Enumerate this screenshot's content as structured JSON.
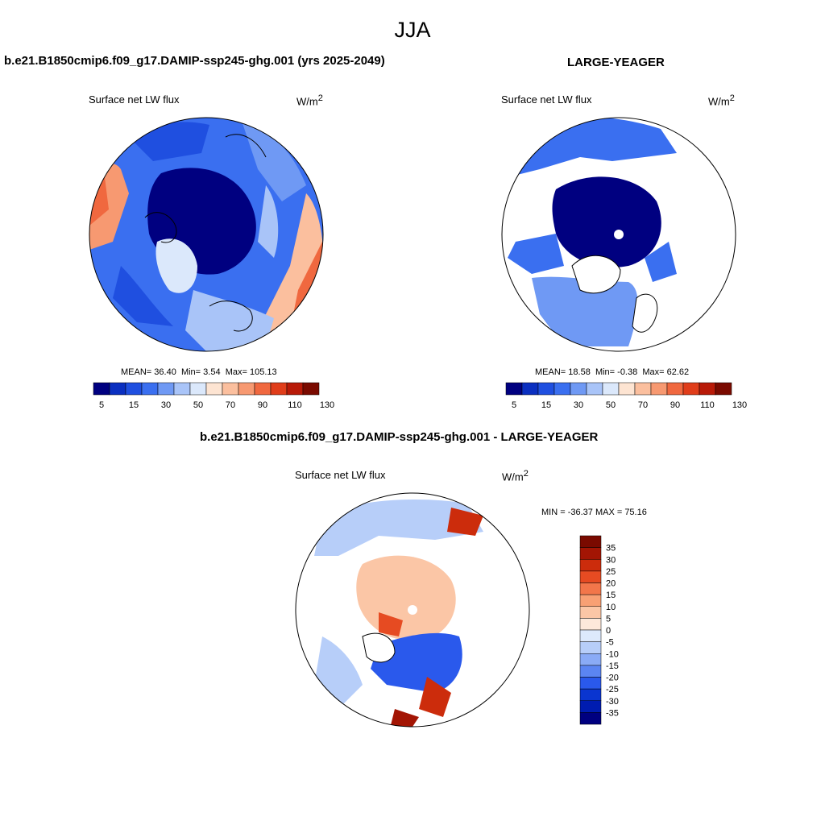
{
  "figure": {
    "season": "JJA"
  },
  "colors": {
    "abs_scale": [
      "#000080",
      "#0a2fc0",
      "#1f4fe0",
      "#3a6ff0",
      "#6f99f4",
      "#a9c4f8",
      "#dbe8fb",
      "#fde4d2",
      "#fbbf9e",
      "#f79971",
      "#f0683f",
      "#e03d1a",
      "#b81a08",
      "#7a0a00"
    ],
    "diff_scale": [
      "#000080",
      "#001cb0",
      "#0a35d0",
      "#2a59ec",
      "#5b85f2",
      "#8aabf6",
      "#b7cef9",
      "#dde9fc",
      "#fde8da",
      "#fbc6a6",
      "#f8a074",
      "#f2764a",
      "#e64b22",
      "#cc2c0c",
      "#a31504",
      "#7a0a00"
    ]
  },
  "chart_data": [
    {
      "type": "polar-map",
      "title": "b.e21.B1850cmip6.f09_g17.DAMIP-ssp245-ghg.001 (yrs 2025-2049)",
      "variable": "Surface net LW flux",
      "units": "W/m",
      "units_sup": "2",
      "stats": {
        "mean_label": "MEAN=",
        "mean": "36.40",
        "min_label": "Min=",
        "min": "3.54",
        "max_label": "Max=",
        "max": "105.13"
      },
      "colorbar_ticks": [
        "5",
        "15",
        "30",
        "50",
        "70",
        "90",
        "110",
        "130"
      ]
    },
    {
      "type": "polar-map",
      "title": "LARGE-YEAGER",
      "variable": "Surface net LW flux",
      "units": "W/m",
      "units_sup": "2",
      "stats": {
        "mean_label": "MEAN=",
        "mean": "18.58",
        "min_label": "Min=",
        "min": "-0.38",
        "max_label": "Max=",
        "max": "62.62"
      },
      "colorbar_ticks": [
        "5",
        "15",
        "30",
        "50",
        "70",
        "90",
        "110",
        "130"
      ]
    },
    {
      "type": "polar-map-difference",
      "title": "b.e21.B1850cmip6.f09_g17.DAMIP-ssp245-ghg.001 - LARGE-YEAGER",
      "variable": "Surface net LW flux",
      "units": "W/m",
      "units_sup": "2",
      "minmax_label": "MIN = -36.37 MAX =  75.16",
      "colorbar_levels": [
        "35",
        "30",
        "25",
        "20",
        "15",
        "10",
        "5",
        "0",
        "-5",
        "-10",
        "-15",
        "-20",
        "-25",
        "-30",
        "-35"
      ]
    }
  ]
}
